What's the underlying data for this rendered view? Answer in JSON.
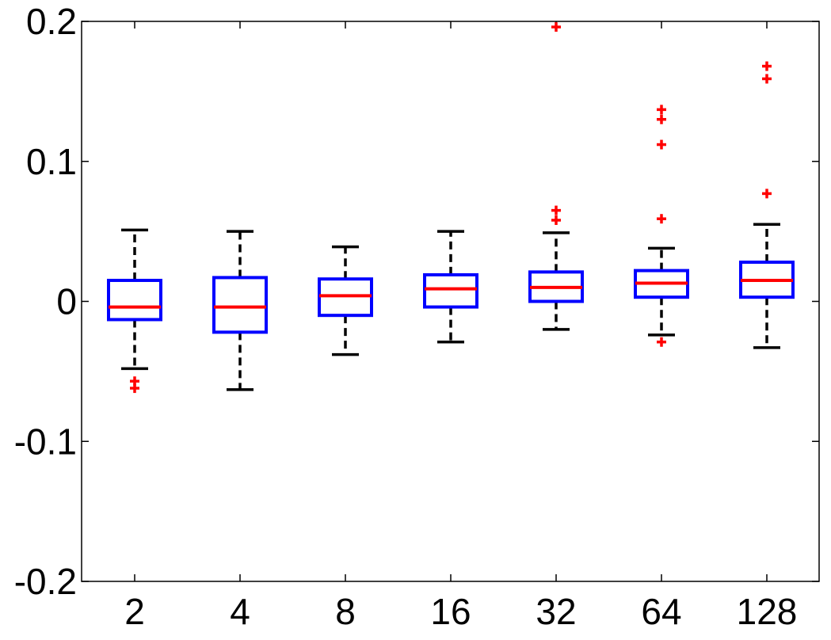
{
  "chart_data": {
    "type": "boxplot",
    "title": "",
    "xlabel": "",
    "ylabel": "",
    "categories": [
      "2",
      "4",
      "8",
      "16",
      "32",
      "64",
      "128"
    ],
    "ylim": [
      -0.2,
      0.2
    ],
    "yticks": [
      {
        "value": 0.2,
        "label": "0.2"
      },
      {
        "value": 0.1,
        "label": "0.1"
      },
      {
        "value": 0,
        "label": "0"
      },
      {
        "value": -0.1,
        "label": "-0.1"
      },
      {
        "value": -0.2,
        "label": "-0.2"
      }
    ],
    "grid": false,
    "colors": {
      "box": "#0000ff",
      "median": "#ff0000",
      "whisker": "#000000",
      "outlier": "#ff0000"
    },
    "boxes": [
      {
        "category": "2",
        "whisker_low": -0.048,
        "q1": -0.013,
        "median": -0.004,
        "q3": 0.015,
        "whisker_high": 0.051,
        "outliers": [
          -0.057,
          -0.062
        ]
      },
      {
        "category": "4",
        "whisker_low": -0.063,
        "q1": -0.022,
        "median": -0.004,
        "q3": 0.017,
        "whisker_high": 0.05,
        "outliers": []
      },
      {
        "category": "8",
        "whisker_low": -0.038,
        "q1": -0.01,
        "median": 0.004,
        "q3": 0.016,
        "whisker_high": 0.039,
        "outliers": []
      },
      {
        "category": "16",
        "whisker_low": -0.029,
        "q1": -0.004,
        "median": 0.009,
        "q3": 0.019,
        "whisker_high": 0.05,
        "outliers": []
      },
      {
        "category": "32",
        "whisker_low": -0.02,
        "q1": 0.0,
        "median": 0.01,
        "q3": 0.021,
        "whisker_high": 0.049,
        "outliers": [
          0.058,
          0.065,
          0.196
        ]
      },
      {
        "category": "64",
        "whisker_low": -0.024,
        "q1": 0.003,
        "median": 0.013,
        "q3": 0.022,
        "whisker_high": 0.038,
        "outliers": [
          -0.029,
          0.059,
          0.112,
          0.13,
          0.137
        ]
      },
      {
        "category": "128",
        "whisker_low": -0.033,
        "q1": 0.003,
        "median": 0.015,
        "q3": 0.028,
        "whisker_high": 0.055,
        "outliers": [
          0.077,
          0.159,
          0.168
        ]
      }
    ]
  }
}
